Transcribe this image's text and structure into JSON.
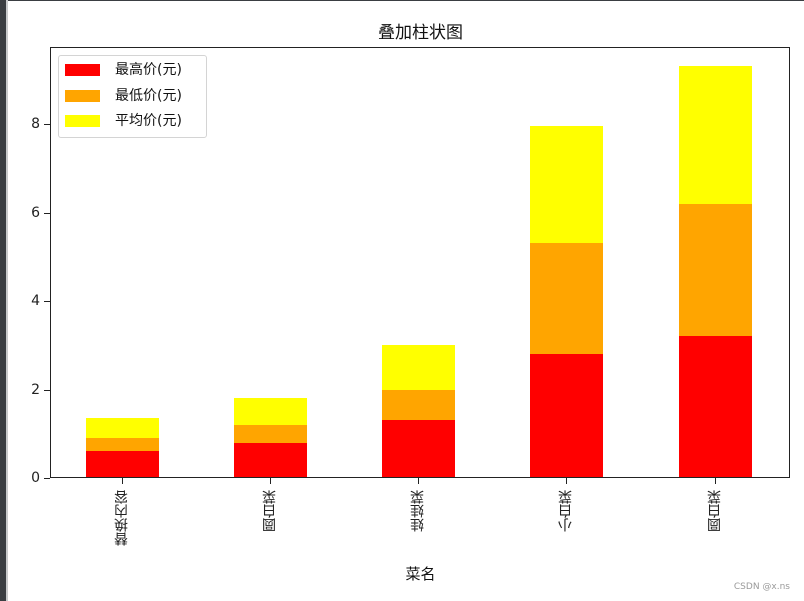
{
  "window": {
    "frame_color": "#3a3e42"
  },
  "chart_data": {
    "type": "bar",
    "stacked": true,
    "title": "叠加柱状图",
    "xlabel": "菜名",
    "ylabel": "",
    "categories": [
      "替换内容",
      "圆白菜",
      "娃娃菜",
      "小白菜",
      "圆白菜"
    ],
    "series": [
      {
        "name": "最高价(元)",
        "color": "#ff0000",
        "values": [
          0.6,
          0.8,
          1.3,
          2.8,
          3.2
        ]
      },
      {
        "name": "最低价(元)",
        "color": "#ffa500",
        "values": [
          0.3,
          0.4,
          0.7,
          2.5,
          3.0
        ]
      },
      {
        "name": "平均价(元)",
        "color": "#ffff00",
        "values": [
          0.45,
          0.6,
          1.0,
          2.65,
          3.1
        ]
      }
    ],
    "yticks": [
      0,
      2,
      4,
      6,
      8
    ],
    "ylim": [
      0,
      9.75
    ],
    "grid": false,
    "legend_position": "upper left",
    "x_tick_rotation": 90
  },
  "watermark": "CSDN @x.ns"
}
